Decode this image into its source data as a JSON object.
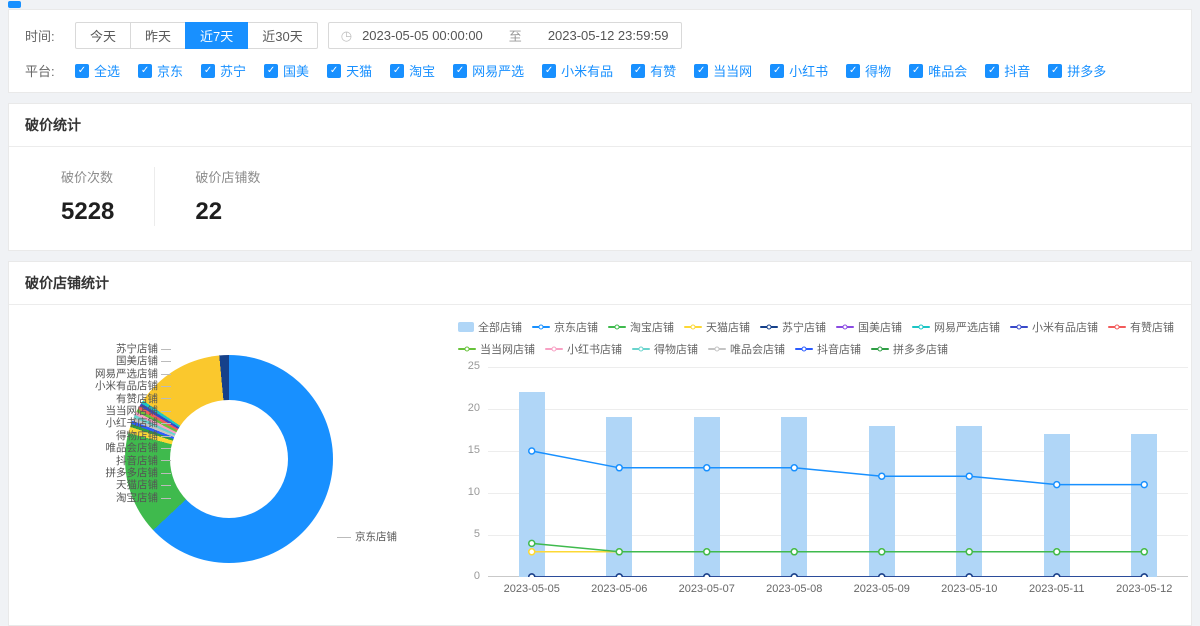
{
  "filters": {
    "time_label": "时间:",
    "time_buttons": [
      {
        "label": "今天",
        "active": false
      },
      {
        "label": "昨天",
        "active": false
      },
      {
        "label": "近7天",
        "active": true
      },
      {
        "label": "近30天",
        "active": false
      }
    ],
    "date_range": {
      "start": "2023-05-05 00:00:00",
      "separator": "至",
      "end": "2023-05-12 23:59:59"
    },
    "platform_label": "平台:",
    "platforms": [
      "全选",
      "京东",
      "苏宁",
      "国美",
      "天猫",
      "淘宝",
      "网易严选",
      "小米有品",
      "有赞",
      "当当网",
      "小红书",
      "得物",
      "唯品会",
      "抖音",
      "拼多多"
    ]
  },
  "stats_card": {
    "title": "破价统计",
    "stats": [
      {
        "label": "破价次数",
        "value": "5228"
      },
      {
        "label": "破价店铺数",
        "value": "22"
      }
    ]
  },
  "shops_card": {
    "title": "破价店铺统计"
  },
  "chart_data": [
    {
      "type": "pie",
      "donut": true,
      "labels": [
        "京东店铺",
        "淘宝店铺",
        "天猫店铺",
        "拼多多店铺",
        "抖音店铺",
        "唯品会店铺",
        "得物店铺",
        "小红书店铺",
        "当当网店铺",
        "有赞店铺",
        "小米有品店铺",
        "网易严选店铺",
        "国美店铺",
        "苏宁店铺"
      ],
      "values_percent": [
        63,
        16,
        1,
        0.5,
        0.5,
        0.5,
        0.5,
        0.5,
        0.5,
        0.5,
        0.5,
        0.5,
        14,
        1.5
      ],
      "colors": [
        "#1890ff",
        "#3fba4d",
        "#fdd835",
        "#2f9e44",
        "#2b5cff",
        "#c4c4c4",
        "#6ad4cd",
        "#f8a1c4",
        "#67c23a",
        "#f25b5b",
        "#3849c9",
        "#1cc5c5",
        "#fac82d",
        "#16418a"
      ],
      "callouts_left": [
        "苏宁店铺",
        "国美店铺",
        "网易严选店铺",
        "小米有品店铺",
        "有赞店铺",
        "当当网店铺",
        "小红书店铺",
        "得物店铺",
        "唯品会店铺",
        "抖音店铺",
        "拼多多店铺",
        "天猫店铺",
        "淘宝店铺"
      ],
      "callout_right": "京东店铺"
    },
    {
      "type": "bar+line",
      "categories": [
        "2023-05-05",
        "2023-05-06",
        "2023-05-07",
        "2023-05-08",
        "2023-05-09",
        "2023-05-10",
        "2023-05-11",
        "2023-05-12"
      ],
      "ylim": [
        0,
        25
      ],
      "yticks": [
        0,
        5,
        10,
        15,
        20,
        25
      ],
      "grid": true,
      "legend_position": "top",
      "series": [
        {
          "name": "全部店铺",
          "type": "bar",
          "color": "#b0d6f7",
          "values": [
            22,
            19,
            19,
            19,
            18,
            18,
            17,
            17
          ]
        },
        {
          "name": "京东店铺",
          "type": "line",
          "color": "#1890ff",
          "values": [
            15,
            13,
            13,
            13,
            12,
            12,
            11,
            11
          ]
        },
        {
          "name": "淘宝店铺",
          "type": "line",
          "color": "#3fba4d",
          "values": [
            4,
            3,
            3,
            3,
            3,
            3,
            3,
            3
          ]
        },
        {
          "name": "天猫店铺",
          "type": "line",
          "color": "#fdd835",
          "values": [
            3,
            3,
            3,
            3,
            3,
            3,
            3,
            3
          ]
        },
        {
          "name": "苏宁店铺",
          "type": "line",
          "color": "#16418a",
          "values": [
            0,
            0,
            0,
            0,
            0,
            0,
            0,
            0
          ]
        },
        {
          "name": "国美店铺",
          "type": "line",
          "color": "#8a4ae2",
          "values": [
            0,
            0,
            0,
            0,
            0,
            0,
            0,
            0
          ]
        },
        {
          "name": "网易严选店铺",
          "type": "line",
          "color": "#1cc5c5",
          "values": [
            0,
            0,
            0,
            0,
            0,
            0,
            0,
            0
          ]
        },
        {
          "name": "小米有品店铺",
          "type": "line",
          "color": "#3849c9",
          "values": [
            0,
            0,
            0,
            0,
            0,
            0,
            0,
            0
          ]
        },
        {
          "name": "有赞店铺",
          "type": "line",
          "color": "#f25b5b",
          "values": [
            0,
            0,
            0,
            0,
            0,
            0,
            0,
            0
          ]
        },
        {
          "name": "当当网店铺",
          "type": "line",
          "color": "#67c23a",
          "values": [
            0,
            0,
            0,
            0,
            0,
            0,
            0,
            0
          ]
        },
        {
          "name": "小红书店铺",
          "type": "line",
          "color": "#f8a1c4",
          "values": [
            0,
            0,
            0,
            0,
            0,
            0,
            0,
            0
          ]
        },
        {
          "name": "得物店铺",
          "type": "line",
          "color": "#6ad4cd",
          "values": [
            0,
            0,
            0,
            0,
            0,
            0,
            0,
            0
          ]
        },
        {
          "name": "唯品会店铺",
          "type": "line",
          "color": "#c4c4c4",
          "values": [
            0,
            0,
            0,
            0,
            0,
            0,
            0,
            0
          ]
        },
        {
          "name": "抖音店铺",
          "type": "line",
          "color": "#2b5cff",
          "values": [
            0,
            0,
            0,
            0,
            0,
            0,
            0,
            0
          ]
        },
        {
          "name": "拼多多店铺",
          "type": "line",
          "color": "#2f9e44",
          "values": [
            0,
            0,
            0,
            0,
            0,
            0,
            0,
            0
          ]
        }
      ]
    }
  ],
  "colors": {
    "accent": "#1890ff",
    "bar_fill": "#b0d6f7",
    "page_bg": "#f0f2f5"
  }
}
